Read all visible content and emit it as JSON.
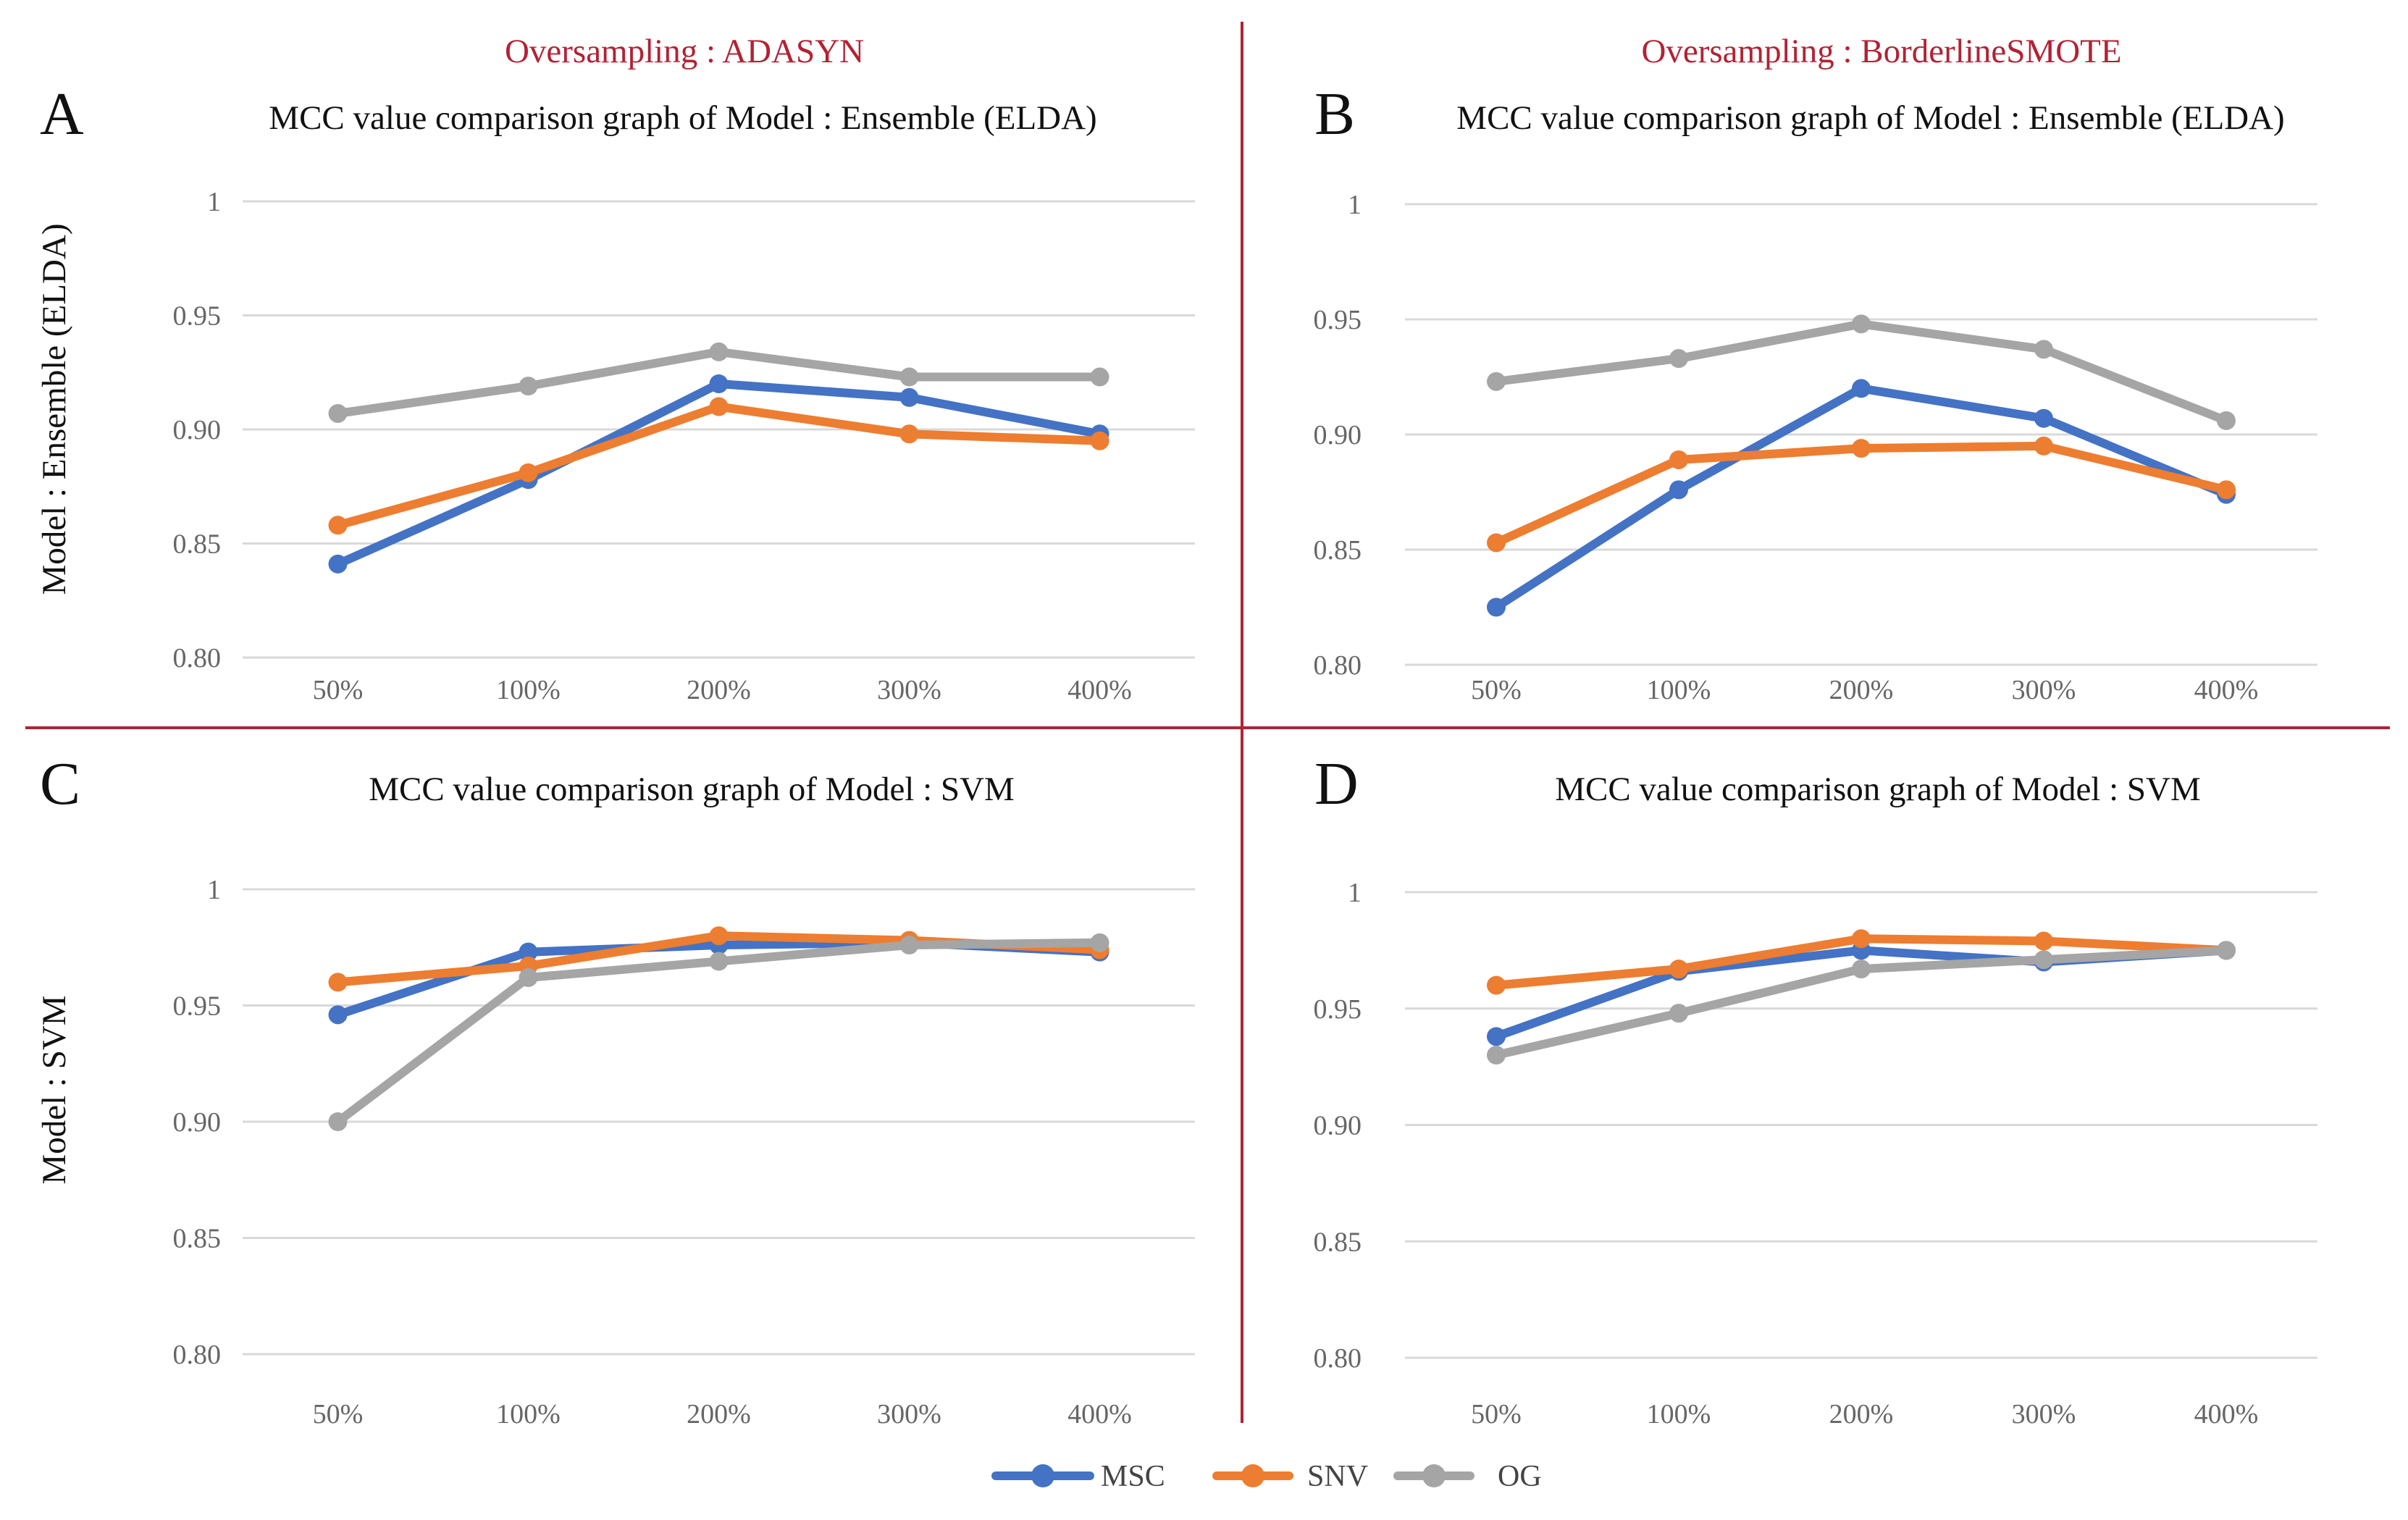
{
  "figure": {
    "divider_color": "#b22234",
    "accent_color": "#b22234",
    "oversampling_labels": [
      "Oversampling : ADASYN",
      "Oversampling : BorderlineSMOTE"
    ],
    "row_labels": [
      "Model : Ensemble (ELDA)",
      "Model : SVM"
    ],
    "legend": [
      {
        "name": "MSC",
        "color": "#4472c4"
      },
      {
        "name": "SNV",
        "color": "#ed7d31"
      },
      {
        "name": "OG",
        "color": "#a5a5a5"
      }
    ]
  },
  "chart_data": [
    {
      "panel": "A",
      "type": "line",
      "title": "MCC value comparison graph of Model : Ensemble (ELDA)",
      "categories": [
        "50%",
        "100%",
        "200%",
        "300%",
        "400%"
      ],
      "ylim": [
        0.8,
        1.0
      ],
      "yticks": [
        "0.80",
        "0.85",
        "0.90",
        "0.95",
        "1"
      ],
      "series": [
        {
          "name": "MSC",
          "color": "#4472c4",
          "values": [
            0.841,
            0.878,
            0.92,
            0.914,
            0.898
          ]
        },
        {
          "name": "SNV",
          "color": "#ed7d31",
          "values": [
            0.858,
            0.881,
            0.91,
            0.898,
            0.895
          ]
        },
        {
          "name": "OG",
          "color": "#a5a5a5",
          "values": [
            0.907,
            0.919,
            0.934,
            0.923,
            0.923
          ]
        }
      ]
    },
    {
      "panel": "B",
      "type": "line",
      "title": "MCC value comparison graph of Model : Ensemble (ELDA)",
      "categories": [
        "50%",
        "100%",
        "200%",
        "300%",
        "400%"
      ],
      "ylim": [
        0.8,
        1.0
      ],
      "yticks": [
        "0.80",
        "0.85",
        "0.90",
        "0.95",
        "1"
      ],
      "series": [
        {
          "name": "MSC",
          "color": "#4472c4",
          "values": [
            0.825,
            0.876,
            0.92,
            0.907,
            0.874
          ]
        },
        {
          "name": "SNV",
          "color": "#ed7d31",
          "values": [
            0.853,
            0.889,
            0.894,
            0.895,
            0.876
          ]
        },
        {
          "name": "OG",
          "color": "#a5a5a5",
          "values": [
            0.923,
            0.933,
            0.948,
            0.937,
            0.906
          ]
        }
      ]
    },
    {
      "panel": "C",
      "type": "line",
      "title": "MCC value comparison graph of Model : SVM",
      "categories": [
        "50%",
        "100%",
        "200%",
        "300%",
        "400%"
      ],
      "ylim": [
        0.8,
        1.0
      ],
      "yticks": [
        "0.80",
        "0.85",
        "0.90",
        "0.95",
        "1"
      ],
      "series": [
        {
          "name": "MSC",
          "color": "#4472c4",
          "values": [
            0.946,
            0.973,
            0.976,
            0.977,
            0.973
          ]
        },
        {
          "name": "SNV",
          "color": "#ed7d31",
          "values": [
            0.96,
            0.967,
            0.98,
            0.978,
            0.974
          ]
        },
        {
          "name": "OG",
          "color": "#a5a5a5",
          "values": [
            0.9,
            0.962,
            0.969,
            0.976,
            0.977
          ]
        }
      ]
    },
    {
      "panel": "D",
      "type": "line",
      "title": "MCC value comparison graph of Model : SVM",
      "categories": [
        "50%",
        "100%",
        "200%",
        "300%",
        "400%"
      ],
      "ylim": [
        0.8,
        1.0
      ],
      "yticks": [
        "0.80",
        "0.85",
        "0.90",
        "0.95",
        "1"
      ],
      "series": [
        {
          "name": "MSC",
          "color": "#4472c4",
          "values": [
            0.938,
            0.966,
            0.975,
            0.97,
            0.975
          ]
        },
        {
          "name": "SNV",
          "color": "#ed7d31",
          "values": [
            0.96,
            0.967,
            0.98,
            0.979,
            0.975
          ]
        },
        {
          "name": "OG",
          "color": "#a5a5a5",
          "values": [
            0.93,
            0.948,
            0.967,
            0.971,
            0.975
          ]
        }
      ]
    }
  ]
}
